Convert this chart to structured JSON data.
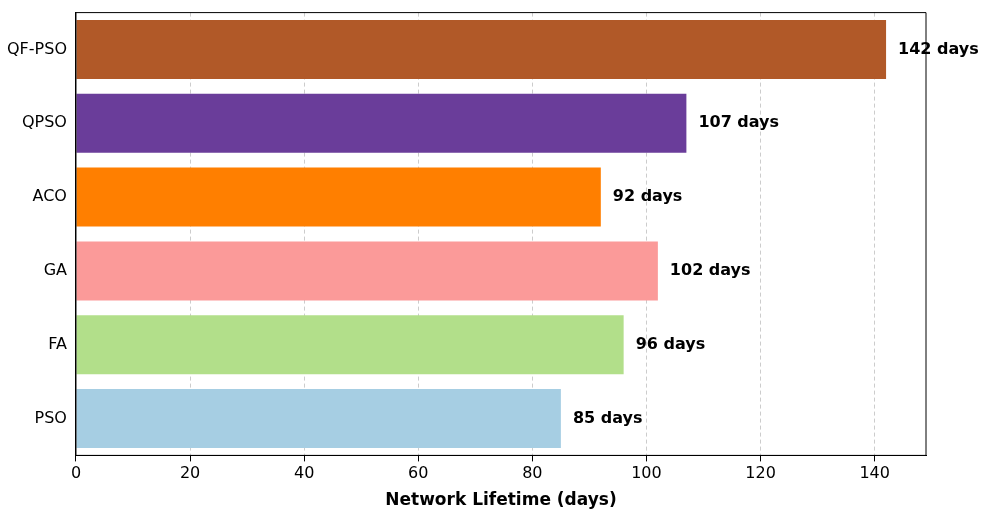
{
  "chart_data": {
    "type": "bar",
    "orientation": "horizontal",
    "xlabel": "Network Lifetime (days)",
    "categories": [
      "QF-PSO",
      "QPSO",
      "ACO",
      "GA",
      "FA",
      "PSO"
    ],
    "values": [
      142,
      107,
      92,
      102,
      96,
      85
    ],
    "colors": [
      "#b15928",
      "#6a3d9a",
      "#ff7f00",
      "#fb9a99",
      "#b2df8a",
      "#a6cee3"
    ],
    "value_labels": [
      "142 days",
      "107 days",
      "92 days",
      "102 days",
      "96 days",
      "85 days"
    ],
    "xlim": [
      0,
      149
    ],
    "xticks": [
      0,
      20,
      40,
      60,
      80,
      100,
      120,
      140
    ],
    "grid": "x",
    "line_style": "dashed"
  }
}
